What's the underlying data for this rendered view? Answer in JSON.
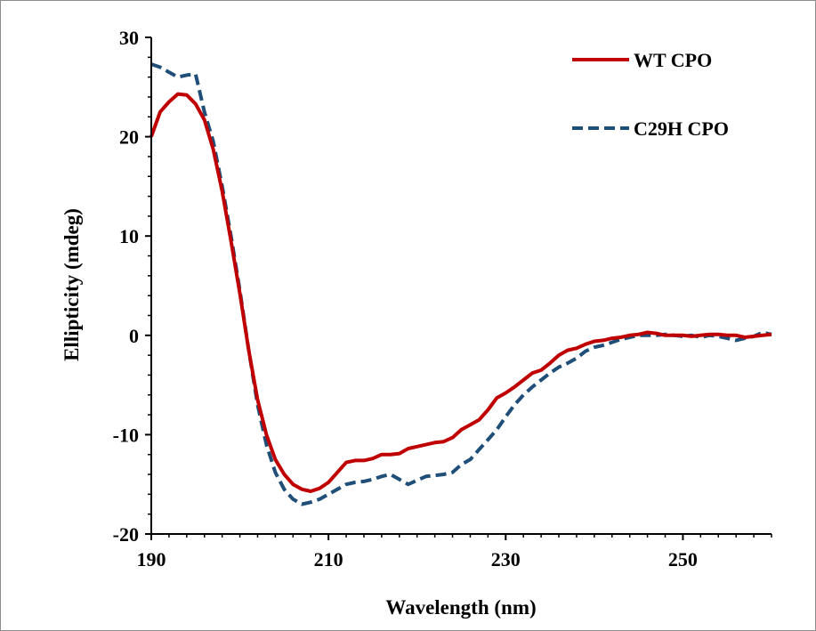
{
  "chart_data": {
    "type": "line",
    "title": "",
    "xlabel": "Wavelength (nm)",
    "ylabel": "Ellipticity (mdeg)",
    "xlim": [
      190,
      260
    ],
    "ylim": [
      -20,
      30
    ],
    "xticks": [
      190,
      210,
      230,
      250
    ],
    "xtick_labels": [
      "190",
      "210",
      "230",
      "250"
    ],
    "yticks": [
      -20,
      -10,
      0,
      10,
      20,
      30
    ],
    "ytick_labels": [
      "-20",
      "-10",
      "0",
      "10",
      "20",
      "30"
    ],
    "grid": false,
    "legend_position": "top-right",
    "series": [
      {
        "name": "WT CPO",
        "color": "#c00000",
        "dash": "solid",
        "x": [
          190,
          191,
          192,
          193,
          194,
          195,
          196,
          197,
          198,
          199,
          200,
          201,
          202,
          203,
          204,
          205,
          206,
          207,
          208,
          209,
          210,
          211,
          212,
          213,
          214,
          215,
          216,
          217,
          218,
          219,
          220,
          221,
          222,
          223,
          224,
          225,
          226,
          227,
          228,
          229,
          230,
          231,
          232,
          233,
          234,
          235,
          236,
          237,
          238,
          239,
          240,
          241,
          242,
          243,
          244,
          245,
          246,
          247,
          248,
          249,
          250,
          251,
          252,
          253,
          254,
          255,
          256,
          257,
          258,
          259,
          260
        ],
        "y": [
          20,
          22.5,
          23.5,
          24.3,
          24.2,
          23.3,
          21.7,
          18.7,
          14.5,
          9.5,
          4.2,
          -1.5,
          -6.5,
          -10,
          -12.5,
          -14,
          -15,
          -15.5,
          -15.7,
          -15.4,
          -14.8,
          -13.8,
          -12.8,
          -12.6,
          -12.6,
          -12.4,
          -12,
          -12,
          -11.9,
          -11.4,
          -11.2,
          -11,
          -10.8,
          -10.7,
          -10.3,
          -9.5,
          -9,
          -8.5,
          -7.5,
          -6.3,
          -5.8,
          -5.2,
          -4.5,
          -3.8,
          -3.5,
          -2.8,
          -2,
          -1.5,
          -1.3,
          -0.9,
          -0.6,
          -0.5,
          -0.3,
          -0.2,
          0,
          0.1,
          0.3,
          0.2,
          0,
          0,
          0,
          -0.1,
          0,
          0.1,
          0.1,
          0,
          0,
          -0.2,
          -0.1,
          0,
          0.1
        ]
      },
      {
        "name": "C29H CPO",
        "color": "#1f4e79",
        "dash": "dashed",
        "x": [
          190,
          191,
          192,
          193,
          194,
          195,
          196,
          197,
          198,
          199,
          200,
          201,
          202,
          203,
          204,
          205,
          206,
          207,
          208,
          209,
          210,
          211,
          212,
          213,
          214,
          215,
          216,
          217,
          218,
          219,
          220,
          221,
          222,
          223,
          224,
          225,
          226,
          227,
          228,
          229,
          230,
          231,
          232,
          233,
          234,
          235,
          236,
          237,
          238,
          239,
          240,
          241,
          242,
          243,
          244,
          245,
          246,
          247,
          248,
          249,
          250,
          251,
          252,
          253,
          254,
          255,
          256,
          257,
          258,
          259,
          260
        ],
        "y": [
          27.3,
          27,
          26.5,
          26,
          26.2,
          26.3,
          22.5,
          19.5,
          15,
          10,
          4.5,
          -1.5,
          -7,
          -11,
          -13.8,
          -15.5,
          -16.5,
          -17,
          -16.8,
          -16.5,
          -16,
          -15.5,
          -15,
          -14.8,
          -14.7,
          -14.5,
          -14.2,
          -14,
          -14.5,
          -15,
          -14.6,
          -14.2,
          -14.1,
          -14,
          -13.8,
          -13,
          -12.5,
          -11.5,
          -10.5,
          -9.5,
          -8.2,
          -7,
          -6,
          -5.2,
          -4.5,
          -3.8,
          -3.2,
          -2.8,
          -2.3,
          -1.6,
          -1.2,
          -1,
          -0.7,
          -0.4,
          -0.2,
          0,
          0,
          0,
          0.1,
          0,
          -0.1,
          0,
          -0.2,
          0,
          -0.1,
          -0.3,
          -0.5,
          -0.3,
          -0.1,
          0.3,
          0.1
        ]
      }
    ]
  }
}
